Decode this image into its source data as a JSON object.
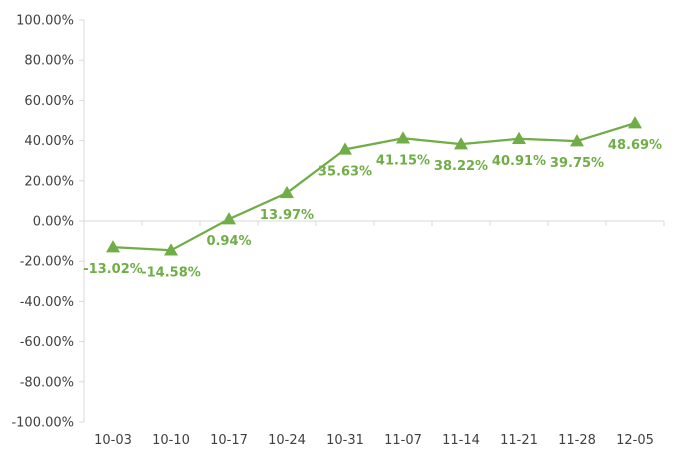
{
  "chart_data": {
    "type": "line",
    "categories": [
      "10-03",
      "10-10",
      "10-17",
      "10-24",
      "10-31",
      "11-07",
      "11-14",
      "11-21",
      "11-28",
      "12-05"
    ],
    "series": [
      {
        "values": [
          -13.02,
          -14.58,
          0.94,
          13.97,
          35.63,
          41.15,
          38.22,
          40.91,
          39.75,
          48.69
        ],
        "labels": [
          "-13.02%",
          "-14.58%",
          "0.94%",
          "13.97%",
          "35.63%",
          "41.15%",
          "38.22%",
          "40.91%",
          "39.75%",
          "48.69%"
        ],
        "color": "#70ad47",
        "marker": "triangle"
      }
    ],
    "y_ticks": [
      "100.00%",
      "80.00%",
      "60.00%",
      "40.00%",
      "20.00%",
      "0.00%",
      "-20.00%",
      "-40.00%",
      "-60.00%",
      "-80.00%",
      "-100.00%"
    ],
    "ylim": [
      -100,
      100
    ],
    "y_tick_step": 20,
    "grid": false,
    "legend": "none",
    "axis_color": "#d9d9d9",
    "tick_label_color": "#404040"
  }
}
